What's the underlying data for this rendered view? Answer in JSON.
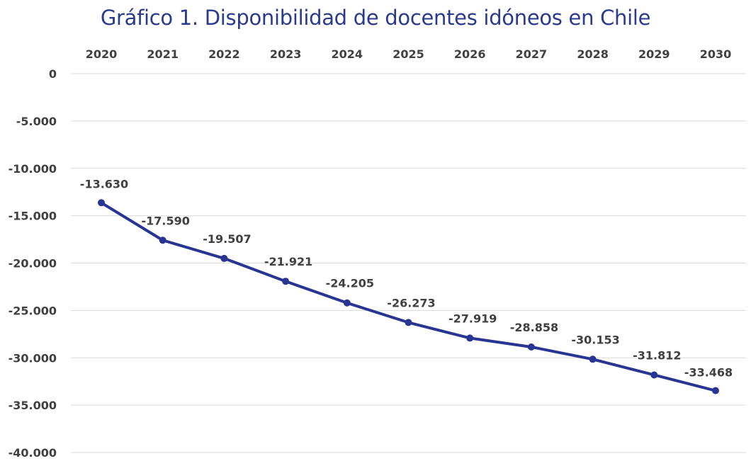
{
  "page": {
    "title": "Gráfico 1. Disponibilidad de docentes idóneos en Chile"
  },
  "chart_data": {
    "type": "line",
    "title": "Gráfico 1. Disponibilidad de docentes idóneos en Chile",
    "xlabel": "",
    "ylabel": "",
    "x": [
      "2020",
      "2021",
      "2022",
      "2023",
      "2024",
      "2025",
      "2026",
      "2027",
      "2028",
      "2029",
      "2030"
    ],
    "series": [
      {
        "values": [
          -13630,
          -17590,
          -19507,
          -21921,
          -24205,
          -26273,
          -27919,
          -28858,
          -30153,
          -31812,
          -33468
        ],
        "data_labels": [
          "-13.630",
          "-17.590",
          "-19.507",
          "-21.921",
          "-24.205",
          "-26.273",
          "-27.919",
          "-28.858",
          "-30.153",
          "-31.812",
          "-33.468"
        ],
        "color": "#283593"
      }
    ],
    "ylim": [
      -40000,
      0
    ],
    "y_ticks": [
      0,
      -5000,
      -10000,
      -15000,
      -20000,
      -25000,
      -30000,
      -35000,
      -40000
    ],
    "y_tick_labels": [
      "0",
      "-5.000",
      "-10.000",
      "-15.000",
      "-20.000",
      "-25.000",
      "-30.000",
      "-35.000",
      "-40.000"
    ],
    "x_axis_position": "top",
    "grid": true,
    "grid_color": "#d9d9d9",
    "legend": "none"
  }
}
